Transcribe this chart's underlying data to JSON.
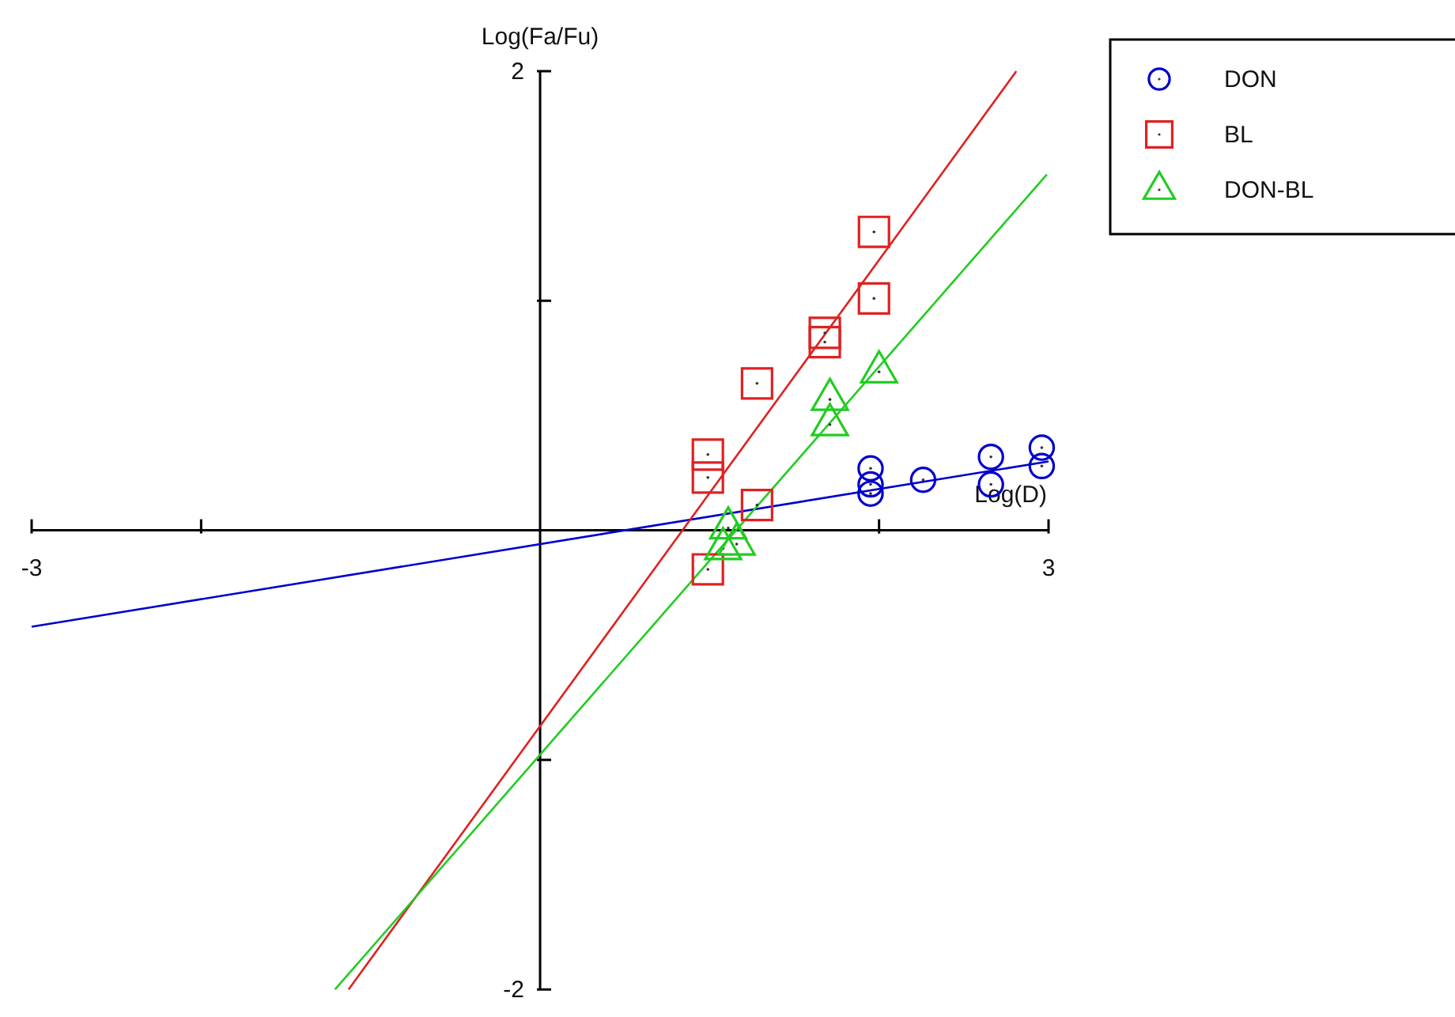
{
  "chart_data": {
    "type": "scatter",
    "xlabel": "Log(D)",
    "ylabel": "Log(Fa/Fu)",
    "xlim": [
      -3,
      3
    ],
    "ylim": [
      -2,
      2
    ],
    "xticks": [
      -3,
      {
        "value": -2,
        "label": null
      },
      {
        "value": 2,
        "label": null
      },
      3
    ],
    "yticks": [
      -2,
      {
        "value": -1,
        "label": null
      },
      {
        "value": 1,
        "label": null
      },
      2
    ],
    "legend": "top right",
    "grid": false,
    "series": [
      {
        "name": "DON",
        "color": "#0000cc",
        "marker": "circle",
        "x": [
          1.95,
          1.95,
          1.95,
          2.26,
          2.66,
          2.66,
          2.96,
          2.96
        ],
        "values": [
          0.27,
          0.2,
          0.16,
          0.22,
          0.32,
          0.2,
          0.36,
          0.28
        ]
      },
      {
        "name": "BL",
        "color": "#dd2222",
        "marker": "square",
        "x": [
          0.99,
          0.99,
          0.99,
          1.28,
          1.28,
          1.68,
          1.68,
          1.97,
          1.97
        ],
        "values": [
          0.33,
          0.23,
          -0.17,
          0.64,
          0.11,
          0.86,
          0.82,
          1.3,
          1.01
        ]
      },
      {
        "name": "DON-BL",
        "color": "#22cc22",
        "marker": "triangle",
        "x": [
          1.08,
          1.11,
          1.16,
          1.71,
          1.71,
          2.0
        ],
        "values": [
          -0.08,
          0.01,
          -0.06,
          0.57,
          0.46,
          0.69
        ]
      },
      {
        "type": "line",
        "color": "#0000cc",
        "marker": "none",
        "x": [
          -3,
          3
        ],
        "values": [
          -0.42,
          0.3
        ]
      },
      {
        "type": "line",
        "color": "#dd2222",
        "marker": "none",
        "x": [
          -1.13,
          2.81
        ],
        "values": [
          -2.0,
          2.0
        ]
      },
      {
        "type": "line",
        "color": "#22cc22",
        "marker": "none",
        "x": [
          -1.21,
          2.99
        ],
        "values": [
          -2.0,
          1.55
        ]
      }
    ]
  }
}
